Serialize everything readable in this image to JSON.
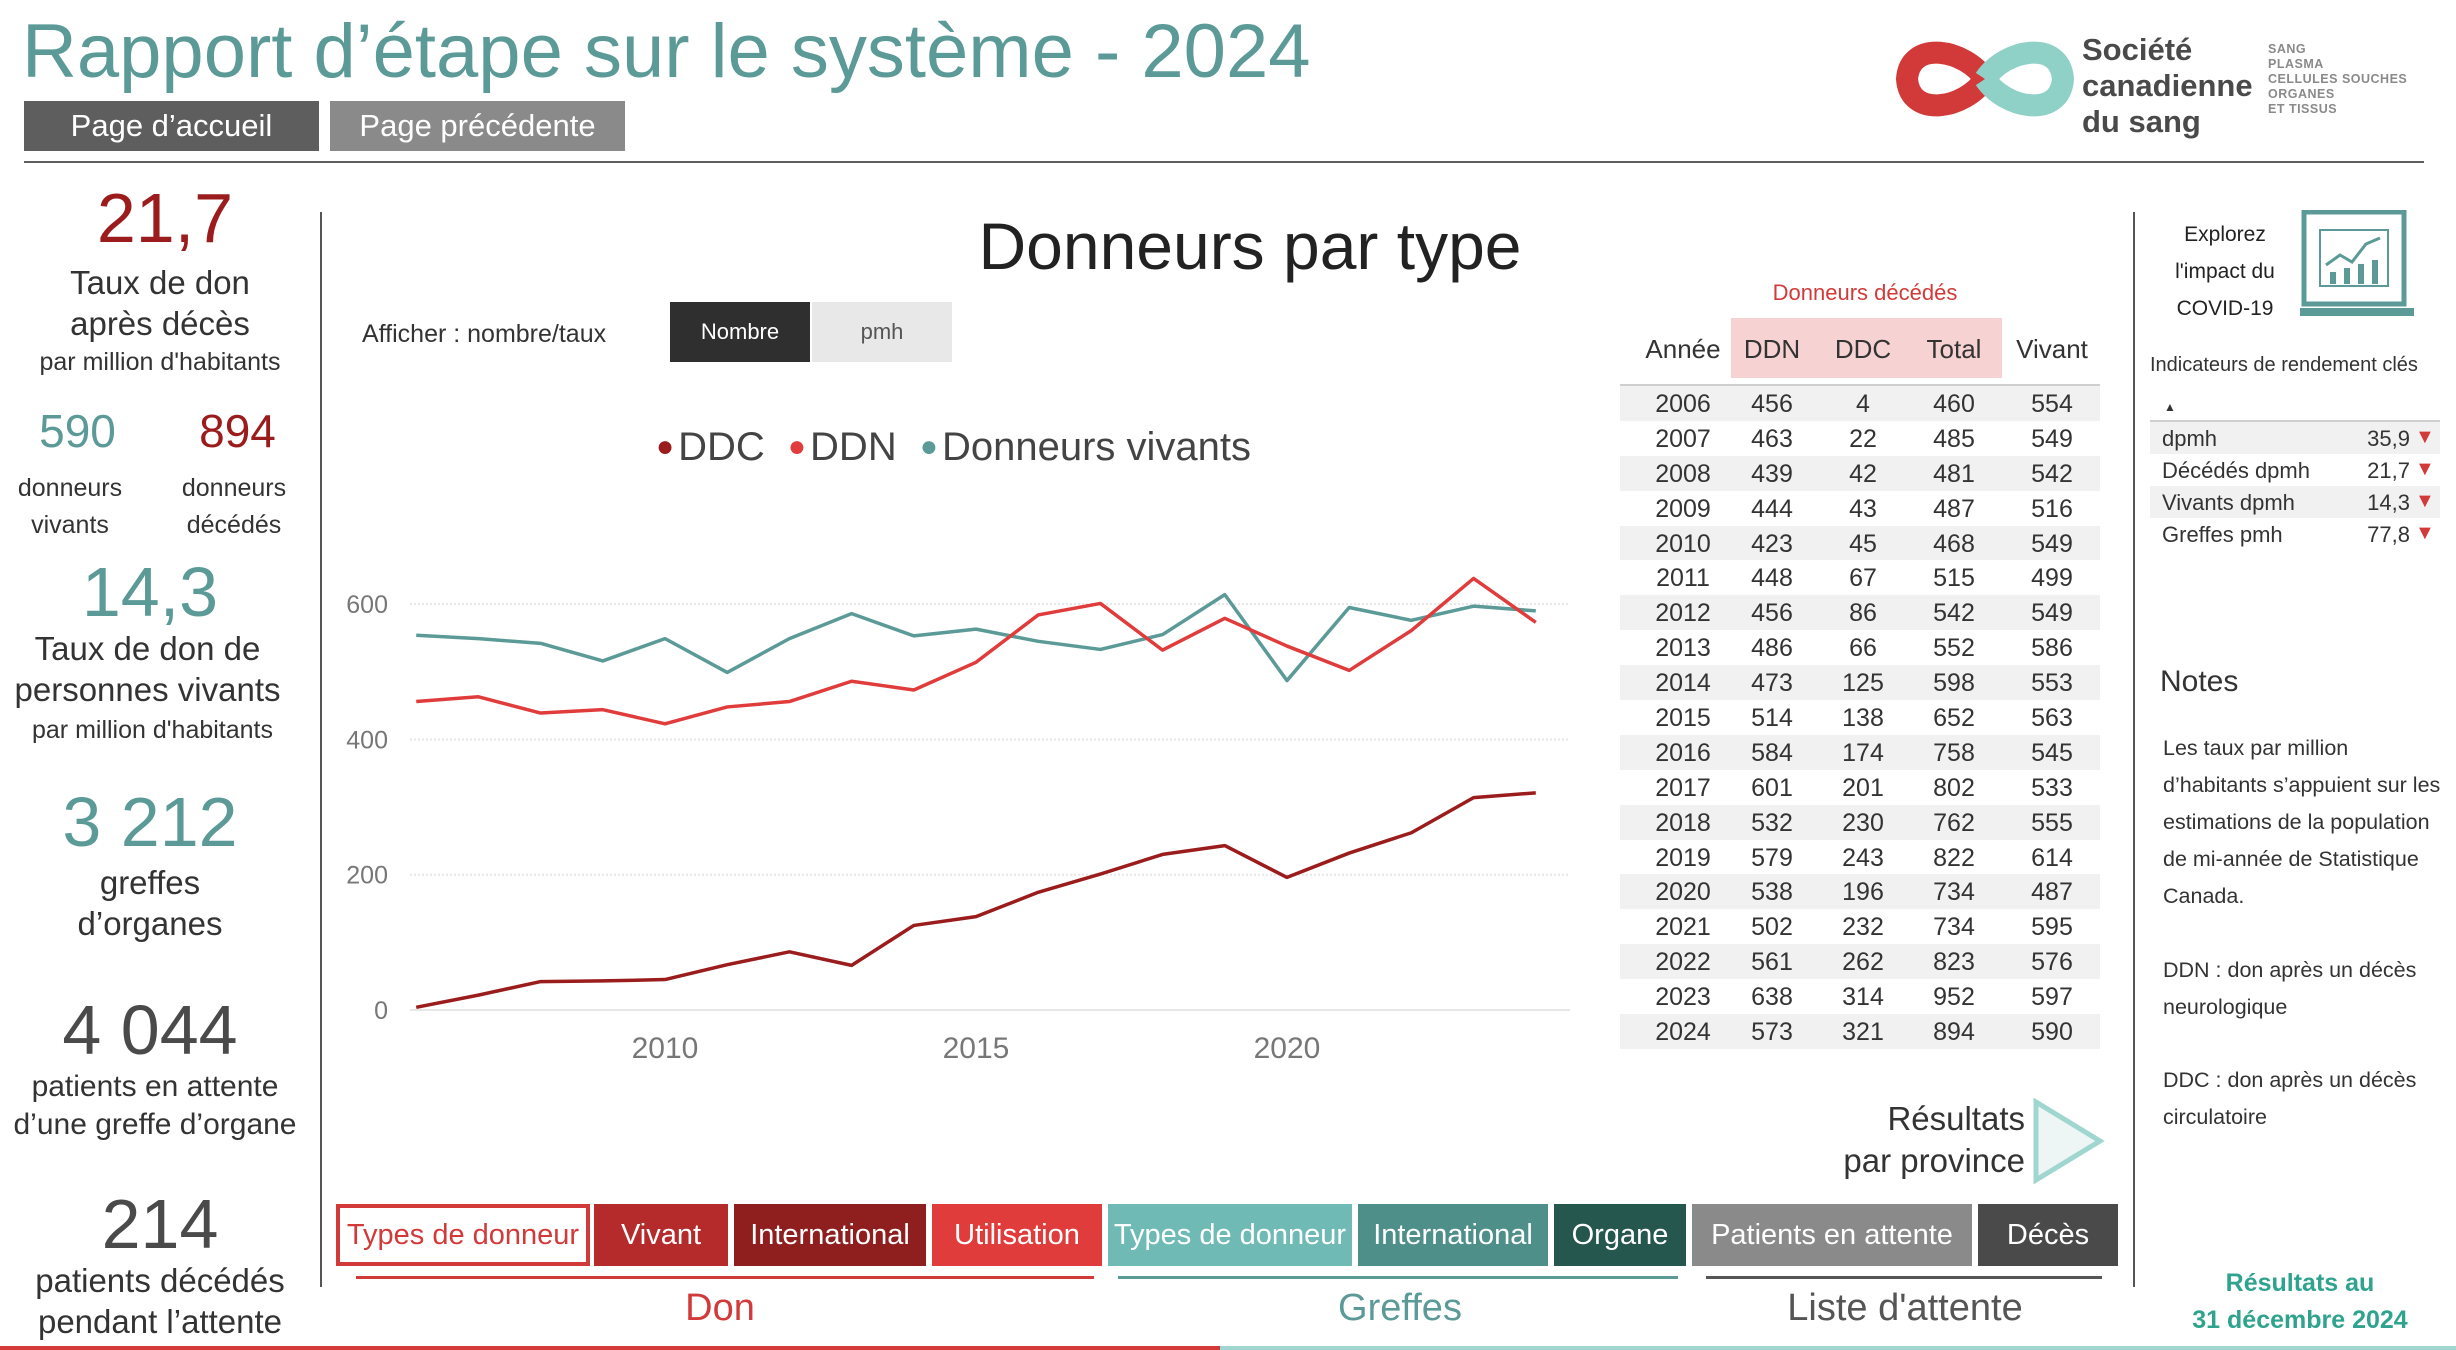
{
  "header": {
    "title": "Rapport d’étape sur le système - 2024",
    "home_button": "Page d’accueil",
    "prev_button": "Page précédente",
    "logo_name_lines": [
      "Société",
      "canadienne",
      "du sang"
    ],
    "logo_sub_lines": [
      "SANG",
      "PLASMA",
      "CELLULES SOUCHES",
      "ORGANES",
      "ET TISSUS"
    ],
    "colors": {
      "teal": "#5b9a97",
      "red": "#d23a3a",
      "dark_red": "#9b1c1c"
    }
  },
  "kpis": {
    "deceased_rate": {
      "value": "21,7",
      "line1": "Taux de don",
      "line2": "après décès",
      "sub": "par million d'habitants"
    },
    "living_donors": {
      "value": "590",
      "line1": "donneurs",
      "line2": "vivants"
    },
    "deceased_donors": {
      "value": "894",
      "line1": "donneurs",
      "line2": "décédés"
    },
    "living_rate": {
      "value": "14,3",
      "line1": "Taux de don de",
      "line2": "personnes vivants",
      "sub": "par million d'habitants"
    },
    "transplants": {
      "value": "3 212",
      "line1": "greffes",
      "line2": "d’organes"
    },
    "waiting": {
      "value": "4 044",
      "line1": "patients en attente",
      "line2": "d’une greffe d’organe"
    },
    "died_waiting": {
      "value": "214",
      "line1": "patients décédés",
      "line2": "pendant l’attente"
    }
  },
  "chart_panel": {
    "title": "Donneurs par type",
    "toggle_label": "Afficher : nombre/taux",
    "toggle_options": [
      "Nombre",
      "pmh"
    ],
    "toggle_selected": "Nombre"
  },
  "chart_data": {
    "type": "line",
    "title": "Donneurs par type",
    "xlabel": "",
    "ylabel": "",
    "x": [
      2006,
      2007,
      2008,
      2009,
      2010,
      2011,
      2012,
      2013,
      2014,
      2015,
      2016,
      2017,
      2018,
      2019,
      2020,
      2021,
      2022,
      2023,
      2024
    ],
    "xticks": [
      2010,
      2015,
      2020
    ],
    "yticks": [
      0,
      200,
      400,
      600
    ],
    "ylim": [
      0,
      680
    ],
    "series": [
      {
        "name": "DDC",
        "color": "#9b1c1c",
        "values": [
          4,
          22,
          42,
          43,
          45,
          67,
          86,
          66,
          125,
          138,
          174,
          201,
          230,
          243,
          196,
          232,
          262,
          314,
          321
        ]
      },
      {
        "name": "DDN",
        "color": "#e03c3c",
        "values": [
          456,
          463,
          439,
          444,
          423,
          448,
          456,
          486,
          473,
          514,
          584,
          601,
          532,
          579,
          538,
          502,
          561,
          638,
          573
        ]
      },
      {
        "name": "Donneurs vivants",
        "color": "#5b9a97",
        "values": [
          554,
          549,
          542,
          516,
          549,
          499,
          549,
          586,
          553,
          563,
          545,
          533,
          555,
          614,
          487,
          595,
          576,
          597,
          590
        ]
      }
    ],
    "legend_position": "top"
  },
  "table": {
    "group_header": "Donneurs décédés",
    "headers": [
      "Année",
      "DDN",
      "DDC",
      "Total",
      "Vivant"
    ],
    "rows": [
      [
        "2006",
        "456",
        "4",
        "460",
        "554"
      ],
      [
        "2007",
        "463",
        "22",
        "485",
        "549"
      ],
      [
        "2008",
        "439",
        "42",
        "481",
        "542"
      ],
      [
        "2009",
        "444",
        "43",
        "487",
        "516"
      ],
      [
        "2010",
        "423",
        "45",
        "468",
        "549"
      ],
      [
        "2011",
        "448",
        "67",
        "515",
        "499"
      ],
      [
        "2012",
        "456",
        "86",
        "542",
        "549"
      ],
      [
        "2013",
        "486",
        "66",
        "552",
        "586"
      ],
      [
        "2014",
        "473",
        "125",
        "598",
        "553"
      ],
      [
        "2015",
        "514",
        "138",
        "652",
        "563"
      ],
      [
        "2016",
        "584",
        "174",
        "758",
        "545"
      ],
      [
        "2017",
        "601",
        "201",
        "802",
        "533"
      ],
      [
        "2018",
        "532",
        "230",
        "762",
        "555"
      ],
      [
        "2019",
        "579",
        "243",
        "822",
        "614"
      ],
      [
        "2020",
        "538",
        "196",
        "734",
        "487"
      ],
      [
        "2021",
        "502",
        "232",
        "734",
        "595"
      ],
      [
        "2022",
        "561",
        "262",
        "823",
        "576"
      ],
      [
        "2023",
        "638",
        "314",
        "952",
        "597"
      ],
      [
        "2024",
        "573",
        "321",
        "894",
        "590"
      ]
    ]
  },
  "province_link": {
    "line1": "Résultats",
    "line2": "par province"
  },
  "right_panel": {
    "covid_lines": [
      "Explorez",
      "l'impact du",
      "COVID-19"
    ],
    "kpi_title": "Indicateurs de rendement clés",
    "kpi_sort_glyph": "▲",
    "kpis": [
      {
        "name": "dpmh",
        "value": "35,9",
        "trend": "▼"
      },
      {
        "name": "Décédés dpmh",
        "value": "21,7",
        "trend": "▼"
      },
      {
        "name": "Vivants dpmh",
        "value": "14,3",
        "trend": "▼"
      },
      {
        "name": "Greffes pmh",
        "value": "77,8",
        "trend": "▼"
      }
    ],
    "notes_title": "Notes",
    "notes": [
      "Les taux par million d’habitants s’appuient sur les estimations de la population de mi-année de Statistique Canada.",
      "DDN : don après un décès neurologique",
      "DDC : don après un décès circulatoire"
    ],
    "results_at_lines": [
      "Résultats au",
      "31 décembre 2024"
    ]
  },
  "bottom_nav": {
    "tabs": [
      {
        "label": "Types de donneur",
        "bg": "#ffffff",
        "fg": "#d23a3a"
      },
      {
        "label": "Vivant",
        "bg": "#b52a2a",
        "fg": "#ffffff"
      },
      {
        "label": "International",
        "bg": "#8f1f1f",
        "fg": "#ffffff"
      },
      {
        "label": "Utilisation",
        "bg": "#e03c3c",
        "fg": "#ffffff"
      },
      {
        "label": "Types de donneur",
        "bg": "#6fbab4",
        "fg": "#ffffff"
      },
      {
        "label": "International",
        "bg": "#4e8f8a",
        "fg": "#ffffff"
      },
      {
        "label": "Organe",
        "bg": "#25574f",
        "fg": "#ffffff"
      },
      {
        "label": "Patients en attente",
        "bg": "#8a8a8a",
        "fg": "#ffffff"
      },
      {
        "label": "Décès",
        "bg": "#4a4a4a",
        "fg": "#ffffff"
      }
    ],
    "groups": [
      {
        "label": "Don",
        "color": "#d23a3a"
      },
      {
        "label": "Greffes",
        "color": "#5b9a97"
      },
      {
        "label": "Liste d'attente",
        "color": "#555555"
      }
    ]
  }
}
